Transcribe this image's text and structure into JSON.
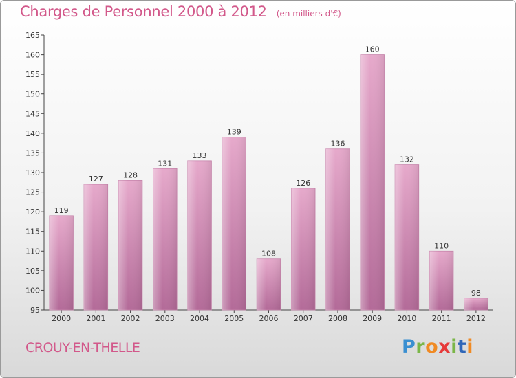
{
  "title": "Charges de Personnel 2000 à 2012",
  "subtitle": "(en milliers d'€)",
  "commune": "CROUY-EN-THELLE",
  "logo": {
    "text": "Proxiti",
    "colors": [
      "#3a8fd1",
      "#7ab648",
      "#f08a23",
      "#e63a3a",
      "#2f66b8"
    ]
  },
  "chart_data": {
    "type": "bar",
    "title": "Charges de Personnel 2000 à 2012",
    "subtitle": "(en milliers d'€)",
    "categories": [
      "2000",
      "2001",
      "2002",
      "2003",
      "2004",
      "2005",
      "2006",
      "2007",
      "2008",
      "2009",
      "2010",
      "2011",
      "2012"
    ],
    "values": [
      119,
      127,
      128,
      131,
      133,
      139,
      108,
      126,
      136,
      160,
      132,
      110,
      98
    ],
    "ylim": [
      95,
      165
    ],
    "yticks": [
      95,
      100,
      105,
      110,
      115,
      120,
      125,
      130,
      135,
      140,
      145,
      150,
      155,
      160,
      165
    ],
    "xlabel": "",
    "ylabel": "",
    "grid": false,
    "bar_color": "#d98ab5",
    "data_labels": true
  }
}
